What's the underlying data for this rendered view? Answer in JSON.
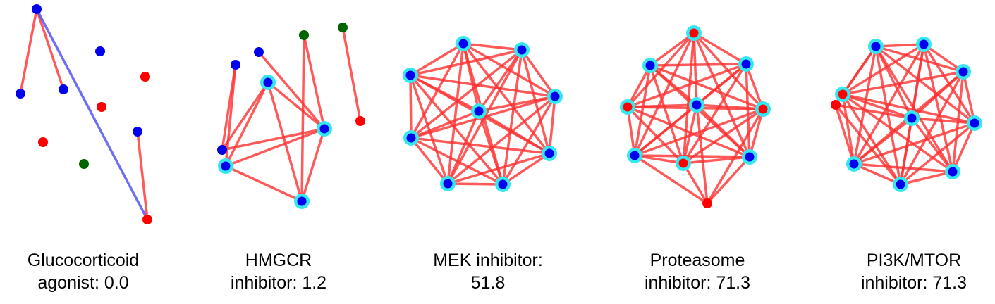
{
  "colors": {
    "blue_node": "#0000ee",
    "red_node": "#ff0000",
    "green_node": "#006400",
    "highlight_ring": "#33e8f0",
    "red_edge": "#ff3030",
    "blue_edge": "#4b4bf0"
  },
  "panels": [
    {
      "id": "glucocorticoid",
      "caption": [
        "Glucocorticoid",
        "agonist: 0.0"
      ],
      "nodes": [
        {
          "id": "a",
          "color": "blue",
          "hl": false
        },
        {
          "id": "b",
          "color": "blue",
          "hl": false
        },
        {
          "id": "c",
          "color": "blue",
          "hl": false
        },
        {
          "id": "d",
          "color": "blue",
          "hl": false
        },
        {
          "id": "e",
          "color": "red",
          "hl": false
        },
        {
          "id": "f",
          "color": "red",
          "hl": false
        },
        {
          "id": "g",
          "color": "blue",
          "hl": false
        },
        {
          "id": "h",
          "color": "red",
          "hl": false
        },
        {
          "id": "i",
          "color": "green",
          "hl": false
        },
        {
          "id": "j",
          "color": "red",
          "hl": false
        }
      ],
      "edges": [
        {
          "s": "a",
          "t": "b",
          "c": "red"
        },
        {
          "s": "a",
          "t": "c",
          "c": "red"
        },
        {
          "s": "a",
          "t": "j",
          "c": "blue"
        },
        {
          "s": "g",
          "t": "j",
          "c": "red"
        }
      ]
    },
    {
      "id": "hmgcr",
      "caption": [
        "HMGCR",
        "inhibitor: 1.2"
      ],
      "nodes": [
        {
          "id": "a",
          "color": "green",
          "hl": false
        },
        {
          "id": "b",
          "color": "green",
          "hl": false
        },
        {
          "id": "c",
          "color": "blue",
          "hl": false
        },
        {
          "id": "d",
          "color": "blue",
          "hl": false
        },
        {
          "id": "e",
          "color": "blue",
          "hl": true
        },
        {
          "id": "f",
          "color": "red",
          "hl": false
        },
        {
          "id": "g",
          "color": "blue",
          "hl": true
        },
        {
          "id": "h",
          "color": "blue",
          "hl": false
        },
        {
          "id": "i",
          "color": "blue",
          "hl": true
        },
        {
          "id": "j",
          "color": "blue",
          "hl": true
        }
      ],
      "edges": [
        {
          "s": "a",
          "t": "g",
          "c": "red"
        },
        {
          "s": "a",
          "t": "j",
          "c": "red"
        },
        {
          "s": "b",
          "t": "f",
          "c": "red"
        },
        {
          "s": "c",
          "t": "g",
          "c": "red"
        },
        {
          "s": "d",
          "t": "h",
          "c": "red"
        },
        {
          "s": "d",
          "t": "i",
          "c": "red"
        },
        {
          "s": "e",
          "t": "g",
          "c": "red"
        },
        {
          "s": "e",
          "t": "h",
          "c": "red"
        },
        {
          "s": "e",
          "t": "i",
          "c": "red"
        },
        {
          "s": "e",
          "t": "j",
          "c": "red"
        },
        {
          "s": "g",
          "t": "h",
          "c": "red"
        },
        {
          "s": "g",
          "t": "i",
          "c": "red"
        },
        {
          "s": "g",
          "t": "j",
          "c": "red"
        },
        {
          "s": "i",
          "t": "j",
          "c": "red"
        }
      ]
    },
    {
      "id": "mek",
      "caption": [
        "MEK inhibitor:",
        "51.8"
      ],
      "complete": true,
      "nodes": [
        {
          "id": "a",
          "color": "blue",
          "hl": true
        },
        {
          "id": "b",
          "color": "blue",
          "hl": true
        },
        {
          "id": "c",
          "color": "blue",
          "hl": true
        },
        {
          "id": "d",
          "color": "blue",
          "hl": true
        },
        {
          "id": "e",
          "color": "blue",
          "hl": true
        },
        {
          "id": "f",
          "color": "blue",
          "hl": true
        },
        {
          "id": "g",
          "color": "blue",
          "hl": true
        },
        {
          "id": "h",
          "color": "blue",
          "hl": true
        },
        {
          "id": "i",
          "color": "blue",
          "hl": true
        }
      ],
      "edges": []
    },
    {
      "id": "proteasome",
      "caption": [
        "Proteasome",
        "inhibitor: 71.3"
      ],
      "complete": true,
      "nodes": [
        {
          "id": "a",
          "color": "red",
          "hl": true
        },
        {
          "id": "b",
          "color": "blue",
          "hl": true
        },
        {
          "id": "c",
          "color": "blue",
          "hl": true
        },
        {
          "id": "d",
          "color": "red",
          "hl": true
        },
        {
          "id": "e",
          "color": "blue",
          "hl": true
        },
        {
          "id": "f",
          "color": "red",
          "hl": true
        },
        {
          "id": "g",
          "color": "blue",
          "hl": true
        },
        {
          "id": "h",
          "color": "red",
          "hl": true
        },
        {
          "id": "i",
          "color": "blue",
          "hl": true
        },
        {
          "id": "j",
          "color": "red",
          "hl": false
        }
      ],
      "edges": []
    },
    {
      "id": "pi3k",
      "caption": [
        "PI3K/MTOR",
        "inhibitor: 71.3"
      ],
      "complete": true,
      "nodes": [
        {
          "id": "a",
          "color": "blue",
          "hl": true
        },
        {
          "id": "b",
          "color": "blue",
          "hl": true
        },
        {
          "id": "c",
          "color": "blue",
          "hl": true
        },
        {
          "id": "d",
          "color": "red",
          "hl": true
        },
        {
          "id": "e",
          "color": "red",
          "hl": false
        },
        {
          "id": "f",
          "color": "blue",
          "hl": true
        },
        {
          "id": "g",
          "color": "blue",
          "hl": true
        },
        {
          "id": "h",
          "color": "blue",
          "hl": true
        },
        {
          "id": "i",
          "color": "blue",
          "hl": true
        },
        {
          "id": "j",
          "color": "blue",
          "hl": true
        }
      ],
      "edges": []
    }
  ]
}
